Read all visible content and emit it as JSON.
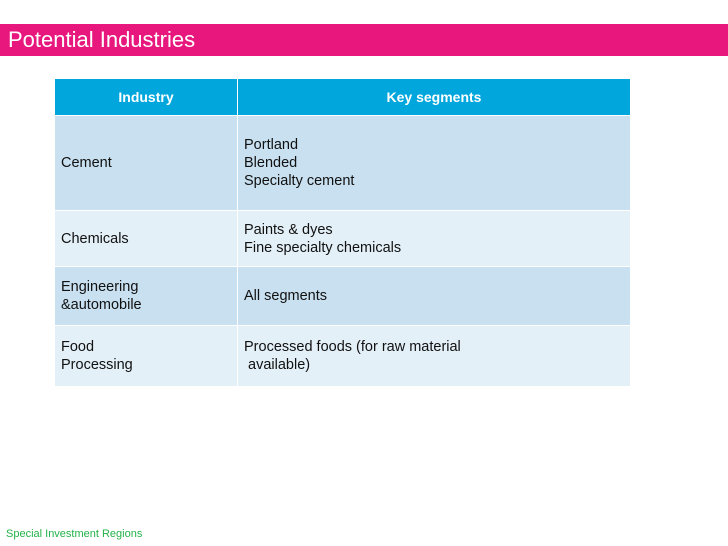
{
  "slide": {
    "title": "Potential Industries",
    "footer": "Special Investment Regions"
  },
  "table": {
    "headers": [
      "Industry",
      "Key segments"
    ],
    "rows": [
      {
        "industry": [
          "Cement"
        ],
        "segments": [
          "Portland",
          "Blended",
          "Specialty cement"
        ]
      },
      {
        "industry": [
          "Chemicals"
        ],
        "segments": [
          "Paints & dyes",
          "Fine specialty chemicals"
        ]
      },
      {
        "industry": [
          "Engineering",
          "&automobile"
        ],
        "segments": [
          "All segments"
        ]
      },
      {
        "industry": [
          "Food",
          "Processing"
        ],
        "segments": [
          "Processed foods (for raw material",
          " available)"
        ]
      }
    ]
  },
  "colors": {
    "title_bar": "#e8177d",
    "header": "#00a6dc",
    "row_dark": "#c8e0f0",
    "row_light": "#e4f0f8",
    "footer_text": "#24b24a"
  }
}
